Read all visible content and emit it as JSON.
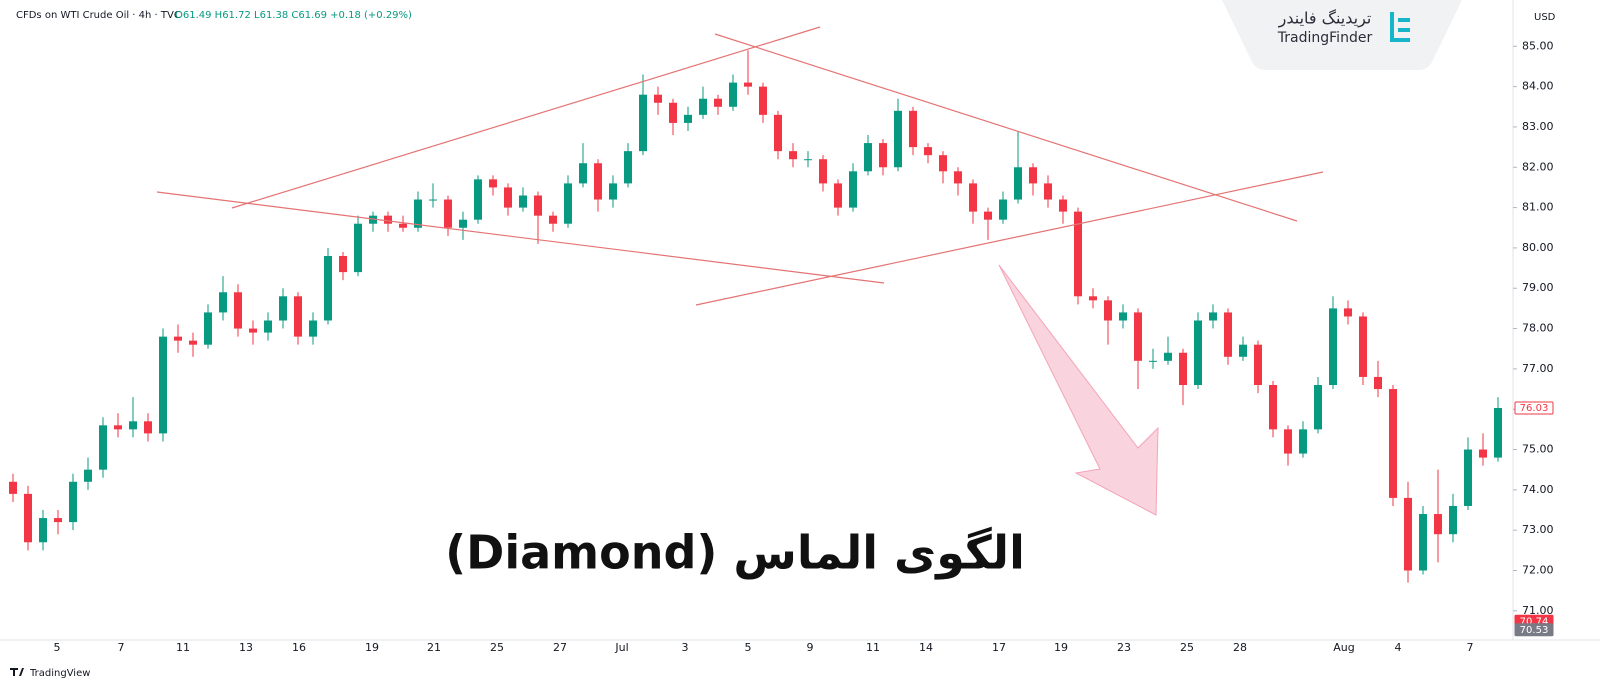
{
  "chart_data": {
    "type": "candlestick",
    "symbol": "CFDs on WTI Crude Oil · 4h · TVC",
    "ohlc_header": "O61.49 H61.72 L61.38 C61.69 +0.18 (+0.29%)",
    "currency": "USD",
    "title": "الگوی الماس (Diamond)",
    "brand_fa": "تریدینگ فایندر",
    "brand_en": "TradingFinder",
    "platform": "TradingView",
    "up_color": "#089981",
    "down_color": "#f23645",
    "ylim": [
      70.4,
      85.95
    ],
    "yticks": [
      {
        "value": 71,
        "label": "71.00"
      },
      {
        "value": 72,
        "label": "72.00"
      },
      {
        "value": 73,
        "label": "73.00"
      },
      {
        "value": 74,
        "label": "74.00"
      },
      {
        "value": 75,
        "label": "75.00"
      },
      {
        "value": 76,
        "label": "76.00"
      },
      {
        "value": 77,
        "label": "77.00"
      },
      {
        "value": 78,
        "label": "78.00"
      },
      {
        "value": 79,
        "label": "79.00"
      },
      {
        "value": 80,
        "label": "80.00"
      },
      {
        "value": 81,
        "label": "81.00"
      },
      {
        "value": 82,
        "label": "82.00"
      },
      {
        "value": 83,
        "label": "83.00"
      },
      {
        "value": 84,
        "label": "84.00"
      },
      {
        "value": 85,
        "label": "85.00"
      }
    ],
    "price_labels": [
      {
        "value": 76.03,
        "color": "#f23645",
        "filled": false
      },
      {
        "value": 70.74,
        "color": "#f23645",
        "filled": true
      },
      {
        "value": 70.53,
        "color": "#787b86",
        "filled": true
      }
    ],
    "x_labels": [
      "5",
      "7",
      "11",
      "13",
      "16",
      "19",
      "21",
      "25",
      "27",
      "Jul",
      "3",
      "5",
      "9",
      "11",
      "14",
      "17",
      "19",
      "23",
      "25",
      "28",
      "Aug",
      "4",
      "7"
    ],
    "ohlc": [
      [
        74.2,
        74.4,
        73.7,
        73.9
      ],
      [
        73.9,
        74.1,
        72.5,
        72.7
      ],
      [
        72.7,
        73.5,
        72.5,
        73.3
      ],
      [
        73.3,
        73.5,
        72.9,
        73.2
      ],
      [
        73.2,
        74.4,
        73.0,
        74.2
      ],
      [
        74.2,
        74.8,
        74.0,
        74.5
      ],
      [
        74.5,
        75.8,
        74.3,
        75.6
      ],
      [
        75.6,
        75.9,
        75.3,
        75.5
      ],
      [
        75.5,
        76.3,
        75.3,
        75.7
      ],
      [
        75.7,
        75.9,
        75.2,
        75.4
      ],
      [
        75.4,
        78.0,
        75.2,
        77.8
      ],
      [
        77.8,
        78.1,
        77.4,
        77.7
      ],
      [
        77.7,
        77.9,
        77.3,
        77.6
      ],
      [
        77.6,
        78.6,
        77.5,
        78.4
      ],
      [
        78.4,
        79.3,
        78.2,
        78.9
      ],
      [
        78.9,
        79.1,
        77.8,
        78.0
      ],
      [
        78.0,
        78.2,
        77.6,
        77.9
      ],
      [
        77.9,
        78.4,
        77.7,
        78.2
      ],
      [
        78.2,
        79.0,
        78.0,
        78.8
      ],
      [
        78.8,
        78.9,
        77.6,
        77.8
      ],
      [
        77.8,
        78.4,
        77.6,
        78.2
      ],
      [
        78.2,
        80.0,
        78.1,
        79.8
      ],
      [
        79.8,
        79.9,
        79.2,
        79.4
      ],
      [
        79.4,
        80.8,
        79.3,
        80.6
      ],
      [
        80.6,
        80.9,
        80.4,
        80.8
      ],
      [
        80.8,
        80.9,
        80.4,
        80.6
      ],
      [
        80.6,
        80.8,
        80.4,
        80.5
      ],
      [
        80.5,
        81.4,
        80.4,
        81.2
      ],
      [
        81.2,
        81.6,
        81.0,
        81.2
      ],
      [
        81.2,
        81.3,
        80.3,
        80.5
      ],
      [
        80.5,
        80.9,
        80.2,
        80.7
      ],
      [
        80.7,
        81.8,
        80.6,
        81.7
      ],
      [
        81.7,
        81.8,
        81.3,
        81.5
      ],
      [
        81.5,
        81.6,
        80.8,
        81.0
      ],
      [
        81.0,
        81.5,
        80.9,
        81.3
      ],
      [
        81.3,
        81.4,
        80.1,
        80.8
      ],
      [
        80.8,
        80.9,
        80.4,
        80.6
      ],
      [
        80.6,
        81.8,
        80.5,
        81.6
      ],
      [
        81.6,
        82.6,
        81.5,
        82.1
      ],
      [
        82.1,
        82.2,
        80.9,
        81.2
      ],
      [
        81.2,
        81.8,
        81.0,
        81.6
      ],
      [
        81.6,
        82.6,
        81.5,
        82.4
      ],
      [
        82.4,
        84.3,
        82.3,
        83.8
      ],
      [
        83.8,
        84.0,
        83.3,
        83.6
      ],
      [
        83.6,
        83.7,
        82.8,
        83.1
      ],
      [
        83.1,
        83.5,
        82.9,
        83.3
      ],
      [
        83.3,
        84.0,
        83.2,
        83.7
      ],
      [
        83.7,
        83.8,
        83.3,
        83.5
      ],
      [
        83.5,
        84.3,
        83.4,
        84.1
      ],
      [
        84.1,
        84.9,
        83.8,
        84.0
      ],
      [
        84.0,
        84.1,
        83.1,
        83.3
      ],
      [
        83.3,
        83.4,
        82.2,
        82.4
      ],
      [
        82.4,
        82.6,
        82.0,
        82.2
      ],
      [
        82.2,
        82.4,
        82.0,
        82.2
      ],
      [
        82.2,
        82.3,
        81.4,
        81.6
      ],
      [
        81.6,
        81.7,
        80.8,
        81.0
      ],
      [
        81.0,
        82.1,
        80.9,
        81.9
      ],
      [
        81.9,
        82.8,
        81.8,
        82.6
      ],
      [
        82.6,
        82.7,
        81.8,
        82.0
      ],
      [
        82.0,
        83.7,
        81.9,
        83.4
      ],
      [
        83.4,
        83.5,
        82.3,
        82.5
      ],
      [
        82.5,
        82.6,
        82.1,
        82.3
      ],
      [
        82.3,
        82.4,
        81.6,
        81.9
      ],
      [
        81.9,
        82.0,
        81.3,
        81.6
      ],
      [
        81.6,
        81.7,
        80.6,
        80.9
      ],
      [
        80.9,
        81.0,
        80.2,
        80.7
      ],
      [
        80.7,
        81.4,
        80.6,
        81.2
      ],
      [
        81.2,
        82.9,
        81.1,
        82.0
      ],
      [
        82.0,
        82.1,
        81.3,
        81.6
      ],
      [
        81.6,
        81.8,
        81.0,
        81.2
      ],
      [
        81.2,
        81.3,
        80.6,
        80.9
      ],
      [
        80.9,
        81.0,
        78.6,
        78.8
      ],
      [
        78.8,
        79.0,
        78.5,
        78.7
      ],
      [
        78.7,
        78.8,
        77.6,
        78.2
      ],
      [
        78.2,
        78.6,
        78.0,
        78.4
      ],
      [
        78.4,
        78.5,
        76.5,
        77.2
      ],
      [
        77.2,
        77.5,
        77.0,
        77.2
      ],
      [
        77.2,
        77.8,
        77.1,
        77.4
      ],
      [
        77.4,
        77.5,
        76.1,
        76.6
      ],
      [
        76.6,
        78.4,
        76.5,
        78.2
      ],
      [
        78.2,
        78.6,
        78.0,
        78.4
      ],
      [
        78.4,
        78.5,
        77.1,
        77.3
      ],
      [
        77.3,
        77.8,
        77.2,
        77.6
      ],
      [
        77.6,
        77.7,
        76.4,
        76.6
      ],
      [
        76.6,
        76.7,
        75.3,
        75.5
      ],
      [
        75.5,
        75.6,
        74.6,
        74.9
      ],
      [
        74.9,
        75.7,
        74.8,
        75.5
      ],
      [
        75.5,
        76.8,
        75.4,
        76.6
      ],
      [
        76.6,
        78.8,
        76.5,
        78.5
      ],
      [
        78.5,
        78.7,
        78.1,
        78.3
      ],
      [
        78.3,
        78.4,
        76.6,
        76.8
      ],
      [
        76.8,
        77.2,
        76.3,
        76.5
      ],
      [
        76.5,
        76.6,
        73.6,
        73.8
      ],
      [
        73.8,
        74.2,
        71.7,
        72.0
      ],
      [
        72.0,
        73.6,
        71.9,
        73.4
      ],
      [
        73.4,
        74.5,
        72.2,
        72.9
      ],
      [
        72.9,
        73.9,
        72.7,
        73.6
      ],
      [
        73.6,
        75.3,
        73.5,
        75.0
      ],
      [
        75.0,
        75.4,
        74.6,
        74.8
      ],
      [
        74.8,
        76.3,
        74.7,
        76.03
      ]
    ]
  }
}
